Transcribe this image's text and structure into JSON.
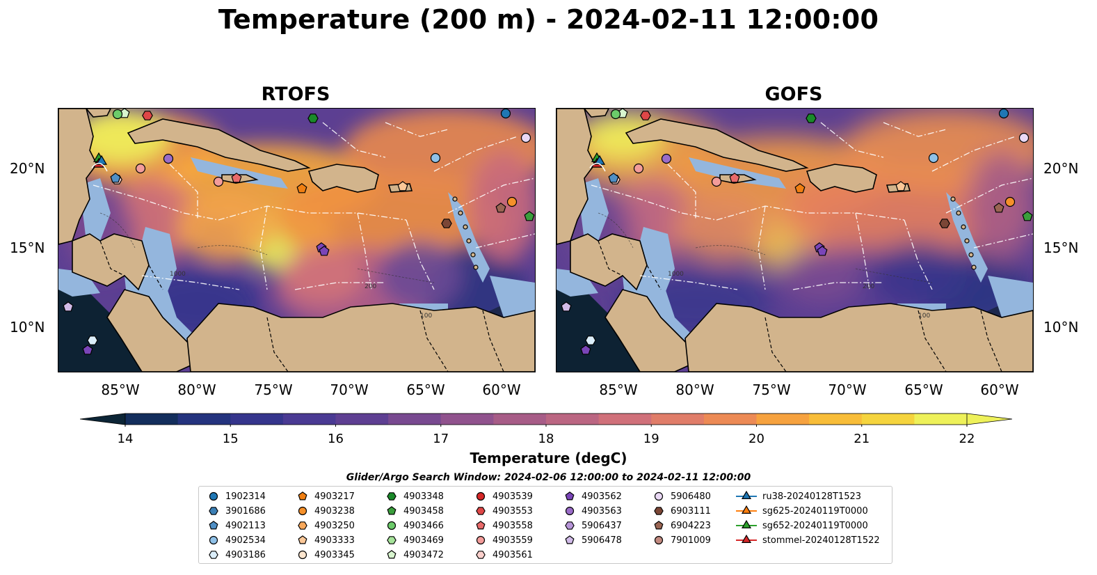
{
  "title": "Temperature (200 m) - 2024-02-11 12:00:00",
  "panels": [
    {
      "title": "RTOFS"
    },
    {
      "title": "GOFS"
    }
  ],
  "axes": {
    "lat_labels": [
      "20°N",
      "15°N",
      "10°N"
    ],
    "lon_labels": [
      "85°W",
      "80°W",
      "75°W",
      "70°W",
      "65°W",
      "60°W"
    ]
  },
  "colorbar": {
    "label": "Temperature (degC)",
    "ticks": [
      "14",
      "15",
      "16",
      "17",
      "18",
      "19",
      "20",
      "21",
      "22"
    ],
    "min": 14,
    "max": 22,
    "colors": [
      "#0c2536",
      "#132e5c",
      "#24337e",
      "#35358c",
      "#4a3a93",
      "#5e3f92",
      "#784990",
      "#90528d",
      "#a75c87",
      "#bb6682",
      "#d0707a",
      "#e07d69",
      "#ec8a55",
      "#f6a23f",
      "#f8bd39",
      "#f5d43e",
      "#eef15a"
    ]
  },
  "contour_labels": [
    "100",
    "200",
    "1000"
  ],
  "search_window_note": "Glider/Argo Search Window: 2024-02-06 12:00:00 to 2024-02-11 12:00:00",
  "legend": [
    {
      "label": "1902314",
      "marker": "circle",
      "color": "#1f77b4"
    },
    {
      "label": "3901686",
      "marker": "hexagon",
      "color": "#3b7fb5"
    },
    {
      "label": "4902113",
      "marker": "pentagon",
      "color": "#4f8fc5"
    },
    {
      "label": "4902534",
      "marker": "circle",
      "color": "#8fc1e8"
    },
    {
      "label": "4903186",
      "marker": "hexagon",
      "color": "#dbeefa"
    },
    {
      "label": "4903217",
      "marker": "pentagon",
      "color": "#f07f12"
    },
    {
      "label": "4903238",
      "marker": "circle",
      "color": "#f5902a"
    },
    {
      "label": "4903250",
      "marker": "hexagon",
      "color": "#f8a85a"
    },
    {
      "label": "4903333",
      "marker": "pentagon",
      "color": "#fbc898"
    },
    {
      "label": "4903345",
      "marker": "circle",
      "color": "#fde6cf"
    },
    {
      "label": "4903348",
      "marker": "hexagon",
      "color": "#1a8a2a"
    },
    {
      "label": "4903458",
      "marker": "pentagon",
      "color": "#3a9e3c"
    },
    {
      "label": "4903466",
      "marker": "circle",
      "color": "#6ccb6a"
    },
    {
      "label": "4903469",
      "marker": "hexagon",
      "color": "#a6e39a"
    },
    {
      "label": "4903472",
      "marker": "pentagon",
      "color": "#d8f5cf"
    },
    {
      "label": "4903539",
      "marker": "circle",
      "color": "#d62728"
    },
    {
      "label": "4903553",
      "marker": "hexagon",
      "color": "#df4747"
    },
    {
      "label": "4903558",
      "marker": "pentagon",
      "color": "#e86a6a"
    },
    {
      "label": "4903559",
      "marker": "circle",
      "color": "#f39c9a"
    },
    {
      "label": "4903561",
      "marker": "hexagon",
      "color": "#fbd0cc"
    },
    {
      "label": "4903562",
      "marker": "pentagon",
      "color": "#7a45b8"
    },
    {
      "label": "4903563",
      "marker": "circle",
      "color": "#9a6cc8"
    },
    {
      "label": "5906437",
      "marker": "hexagon",
      "color": "#b795d8"
    },
    {
      "label": "5906478",
      "marker": "pentagon",
      "color": "#d1bbe8"
    },
    {
      "label": "5906480",
      "marker": "circle",
      "color": "#ead9f5"
    },
    {
      "label": "6903111",
      "marker": "hexagon",
      "color": "#7b4636"
    },
    {
      "label": "6904223",
      "marker": "pentagon",
      "color": "#9a6553"
    },
    {
      "label": "7901009",
      "marker": "circle",
      "color": "#c28a80"
    },
    {
      "label": "ru38-20240128T1523",
      "marker": "triangle",
      "color": "#1f77b4"
    },
    {
      "label": "sg625-20240119T0000",
      "marker": "triangle",
      "color": "#ff7f0e"
    },
    {
      "label": "sg652-20240119T0000",
      "marker": "triangle",
      "color": "#2ca02c"
    },
    {
      "label": "stommel-20240128T1522",
      "marker": "triangle",
      "color": "#d62728"
    }
  ]
}
